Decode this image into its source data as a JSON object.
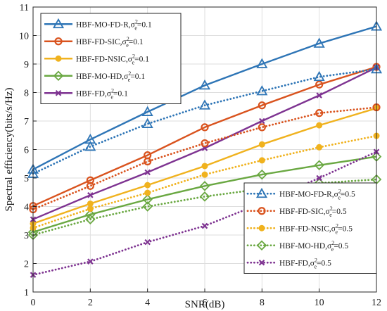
{
  "chart_data": {
    "type": "line",
    "xlabel": "SNR(dB)",
    "ylabel": "Spectral efficiency(bits/s/Hz)",
    "x": [
      0,
      2,
      4,
      6,
      8,
      10,
      12
    ],
    "xlim": [
      0,
      12
    ],
    "ylim": [
      1,
      11
    ],
    "xticks": [
      0,
      2,
      4,
      6,
      8,
      10,
      12
    ],
    "yticks": [
      1,
      2,
      3,
      4,
      5,
      6,
      7,
      8,
      9,
      10,
      11
    ],
    "grid": true,
    "legends": [
      "top-left",
      "bottom-right"
    ],
    "series": [
      {
        "name": "HBF-MO-FD-R",
        "sigma": "0.1",
        "color": "#2e75b6",
        "marker": "triangle-icon",
        "style": "solid",
        "values": [
          5.3,
          6.35,
          7.32,
          8.25,
          9.0,
          9.72,
          10.32
        ]
      },
      {
        "name": "HBF-FD-SIC",
        "sigma": "0.1",
        "color": "#d9531e",
        "marker": "circle-icon",
        "style": "solid",
        "values": [
          4.02,
          4.92,
          5.8,
          6.78,
          7.55,
          8.28,
          8.9
        ]
      },
      {
        "name": "HBF-FD-NSIC",
        "sigma": "0.1",
        "color": "#f0b21e",
        "marker": "dot-icon",
        "style": "solid",
        "values": [
          3.4,
          4.1,
          4.75,
          5.42,
          6.18,
          6.85,
          7.45
        ]
      },
      {
        "name": "HBF-MO-HD",
        "sigma": "0.1",
        "color": "#6aa842",
        "marker": "diamond-icon",
        "style": "solid",
        "values": [
          3.1,
          3.72,
          4.25,
          4.72,
          5.12,
          5.45,
          5.75
        ]
      },
      {
        "name": "HBF-FD",
        "sigma": "0.1",
        "color": "#7e3391",
        "marker": "x-icon",
        "style": "solid",
        "values": [
          3.55,
          4.4,
          5.2,
          6.05,
          7.0,
          7.9,
          8.88
        ]
      },
      {
        "name": "HBF-MO-FD-R",
        "sigma": "0.5",
        "color": "#2e75b6",
        "marker": "triangle-icon",
        "style": "dotted",
        "values": [
          5.15,
          6.1,
          6.9,
          7.55,
          8.05,
          8.55,
          8.82
        ]
      },
      {
        "name": "HBF-FD-SIC",
        "sigma": "0.5",
        "color": "#d9531e",
        "marker": "circle-icon",
        "style": "dotted",
        "values": [
          3.9,
          4.72,
          5.58,
          6.22,
          6.78,
          7.28,
          7.48
        ]
      },
      {
        "name": "HBF-FD-NSIC",
        "sigma": "0.5",
        "color": "#f0b21e",
        "marker": "dot-icon",
        "style": "dotted",
        "values": [
          3.25,
          3.92,
          4.48,
          5.12,
          5.62,
          6.08,
          6.48
        ]
      },
      {
        "name": "HBF-MO-HD",
        "sigma": "0.5",
        "color": "#6aa842",
        "marker": "diamond-icon",
        "style": "dotted",
        "values": [
          3.0,
          3.55,
          4.0,
          4.35,
          4.62,
          4.82,
          4.95
        ]
      },
      {
        "name": "HBF-FD",
        "sigma": "0.5",
        "color": "#7e3391",
        "marker": "x-icon",
        "style": "dotted",
        "values": [
          1.6,
          2.07,
          2.75,
          3.32,
          4.12,
          5.0,
          5.92
        ]
      }
    ]
  }
}
